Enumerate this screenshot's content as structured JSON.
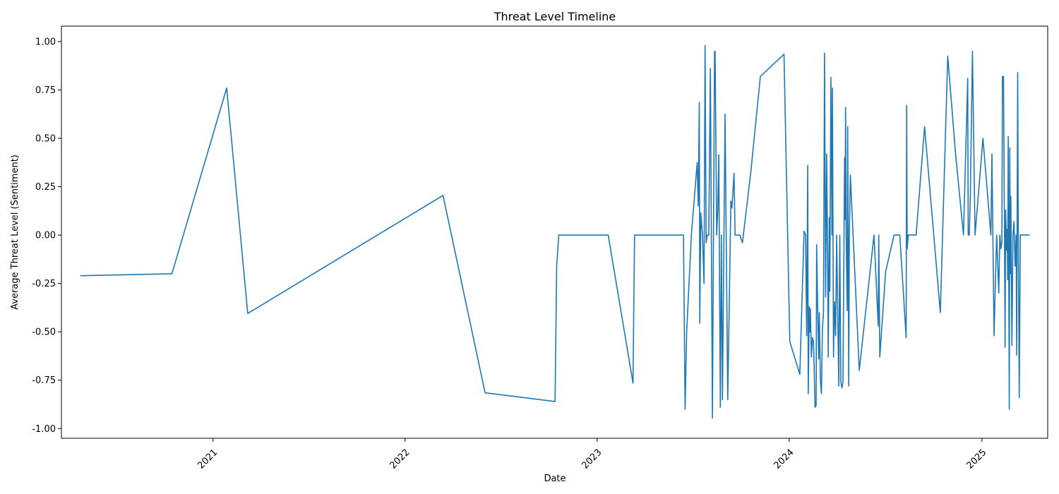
{
  "chart_data": {
    "type": "line",
    "title": "Threat Level Timeline",
    "xlabel": "Date",
    "ylabel": "Average Threat Level (Sentiment)",
    "xlim": [
      "2020-03-19",
      "2025-05-06"
    ],
    "ylim": [
      -1.05,
      1.08
    ],
    "x_ticks": [
      "2021",
      "2022",
      "2023",
      "2024",
      "2025"
    ],
    "y_ticks": [
      "-1.00",
      "-0.75",
      "-0.50",
      "-0.25",
      "0.00",
      "0.25",
      "0.50",
      "0.75",
      "1.00"
    ],
    "grid": false,
    "line_color": "#1f77b4",
    "series": [
      {
        "x": [
          "2020-04-25",
          "2020-10-15",
          "2021-01-27",
          "2021-03-08",
          "2022-03-14",
          "2022-06-02",
          "2022-10-13",
          "2022-10-16",
          "2022-10-20",
          "2023-01-22",
          "2023-03-10",
          "2023-03-13",
          "2023-06-14",
          "2023-06-17",
          "2023-06-20",
          "2023-06-29",
          "2023-07-10",
          "2023-07-12",
          "2023-07-14",
          "2023-07-15",
          "2023-07-17",
          "2023-07-20",
          "2023-07-23",
          "2023-07-25",
          "2023-07-27",
          "2023-07-29",
          "2023-08-01",
          "2023-08-04",
          "2023-08-08",
          "2023-08-10",
          "2023-08-12",
          "2023-08-13",
          "2023-08-16",
          "2023-08-18",
          "2023-08-20",
          "2023-08-23",
          "2023-08-25",
          "2023-08-27",
          "2023-09-01",
          "2023-09-06",
          "2023-09-09",
          "2023-09-12",
          "2023-09-14",
          "2023-09-18",
          "2023-09-20",
          "2023-09-24",
          "2023-09-29",
          "2023-10-04",
          "2023-10-20",
          "2023-11-07",
          "2023-12-22",
          "2024-01-02",
          "2024-01-21",
          "2024-01-29",
          "2024-02-01",
          "2024-02-03",
          "2024-02-05",
          "2024-02-06",
          "2024-02-08",
          "2024-02-09",
          "2024-02-10",
          "2024-02-12",
          "2024-02-14",
          "2024-02-16",
          "2024-02-19",
          "2024-02-21",
          "2024-02-22",
          "2024-02-24",
          "2024-02-26",
          "2024-02-27",
          "2024-02-29",
          "2024-03-02",
          "2024-03-04",
          "2024-03-06",
          "2024-03-08",
          "2024-03-10",
          "2024-03-12",
          "2024-03-14",
          "2024-03-15",
          "2024-03-17",
          "2024-03-18",
          "2024-03-20",
          "2024-03-22",
          "2024-03-23",
          "2024-03-25",
          "2024-03-27",
          "2024-03-29",
          "2024-03-31",
          "2024-04-02",
          "2024-04-04",
          "2024-04-06",
          "2024-04-08",
          "2024-04-10",
          "2024-04-12",
          "2024-04-14",
          "2024-04-15",
          "2024-04-16",
          "2024-04-17",
          "2024-04-18",
          "2024-04-20",
          "2024-04-21",
          "2024-04-23",
          "2024-04-24",
          "2024-04-26",
          "2024-05-13",
          "2024-06-10",
          "2024-06-18",
          "2024-06-19",
          "2024-06-21",
          "2024-07-02",
          "2024-07-18",
          "2024-07-29",
          "2024-08-10",
          "2024-08-11",
          "2024-08-12",
          "2024-08-14",
          "2024-08-29",
          "2024-09-14",
          "2024-10-14",
          "2024-10-28",
          "2024-11-12",
          "2024-11-27",
          "2024-12-05",
          "2024-12-06",
          "2024-12-08",
          "2024-12-10",
          "2024-12-14",
          "2024-12-19",
          "2025-01-03",
          "2025-01-18",
          "2025-01-20",
          "2025-01-24",
          "2025-01-26",
          "2025-01-29",
          "2025-02-02",
          "2025-02-04",
          "2025-02-06",
          "2025-02-08",
          "2025-02-09",
          "2025-02-11",
          "2025-02-13",
          "2025-02-14",
          "2025-02-15",
          "2025-02-17",
          "2025-02-18",
          "2025-02-19",
          "2025-02-20",
          "2025-02-22",
          "2025-02-23",
          "2025-02-24",
          "2025-02-25",
          "2025-02-27",
          "2025-03-01",
          "2025-03-03",
          "2025-03-05",
          "2025-03-07",
          "2025-03-08",
          "2025-03-10",
          "2025-03-11",
          "2025-03-13",
          "2025-03-15",
          "2025-03-17",
          "2025-03-19",
          "2025-03-21",
          "2025-03-23",
          "2025-03-24",
          "2025-04-01"
        ],
        "y": [
          -0.21,
          -0.2,
          0.76,
          -0.405,
          0.205,
          -0.815,
          -0.86,
          -0.16,
          0.0,
          0.0,
          -0.765,
          0.0,
          0.0,
          -0.9,
          -0.5,
          0.0,
          0.375,
          0.15,
          0.685,
          -0.455,
          0.115,
          0.0,
          -0.25,
          0.98,
          -0.04,
          0.0,
          0.0,
          0.86,
          -0.945,
          0.0,
          0.95,
          0.95,
          0.0,
          0.12,
          0.415,
          -0.89,
          0.0,
          -0.85,
          0.625,
          -0.85,
          -0.35,
          0.175,
          0.14,
          0.32,
          0.0,
          0.0,
          0.0,
          -0.04,
          0.33,
          0.82,
          0.935,
          -0.55,
          -0.72,
          0.02,
          0.0,
          -0.52,
          0.36,
          -0.82,
          -0.37,
          -0.5,
          -0.38,
          -0.63,
          -0.53,
          -0.55,
          -0.89,
          -0.88,
          -0.05,
          -0.38,
          -0.64,
          -0.4,
          -0.75,
          -0.82,
          -0.48,
          -0.4,
          0.94,
          -0.32,
          0.42,
          -0.17,
          -0.63,
          0.09,
          -0.29,
          0.815,
          0.0,
          0.76,
          -0.63,
          -0.345,
          -0.52,
          0.0,
          -0.41,
          -0.78,
          0.0,
          -0.76,
          -0.79,
          -0.76,
          0.0,
          0.4,
          0.08,
          0.66,
          0.0,
          -0.39,
          0.56,
          -0.78,
          0.0,
          0.31,
          -0.7,
          0.0,
          -0.47,
          0.0,
          -0.63,
          -0.19,
          0.0,
          0.0,
          -0.53,
          0.67,
          -0.07,
          0.0,
          0.0,
          0.56,
          -0.4,
          0.925,
          0.42,
          0.0,
          0.81,
          0.0,
          0.0,
          0.2,
          0.95,
          0.0,
          0.5,
          0.0,
          0.42,
          -0.52,
          -0.3,
          0.0,
          -0.3,
          0.0,
          -0.07,
          -0.04,
          0.82,
          0.82,
          -0.07,
          -0.58,
          0.13,
          -0.08,
          0.03,
          -0.23,
          0.51,
          -0.9,
          0.45,
          -0.2,
          0.2,
          -0.57,
          0.0,
          0.07,
          -0.16,
          0.0,
          -0.62,
          0.84,
          0.03,
          -0.84,
          0.0,
          0.0,
          0.0,
          0.0,
          0.0,
          0.0,
          0.0
        ]
      }
    ]
  }
}
